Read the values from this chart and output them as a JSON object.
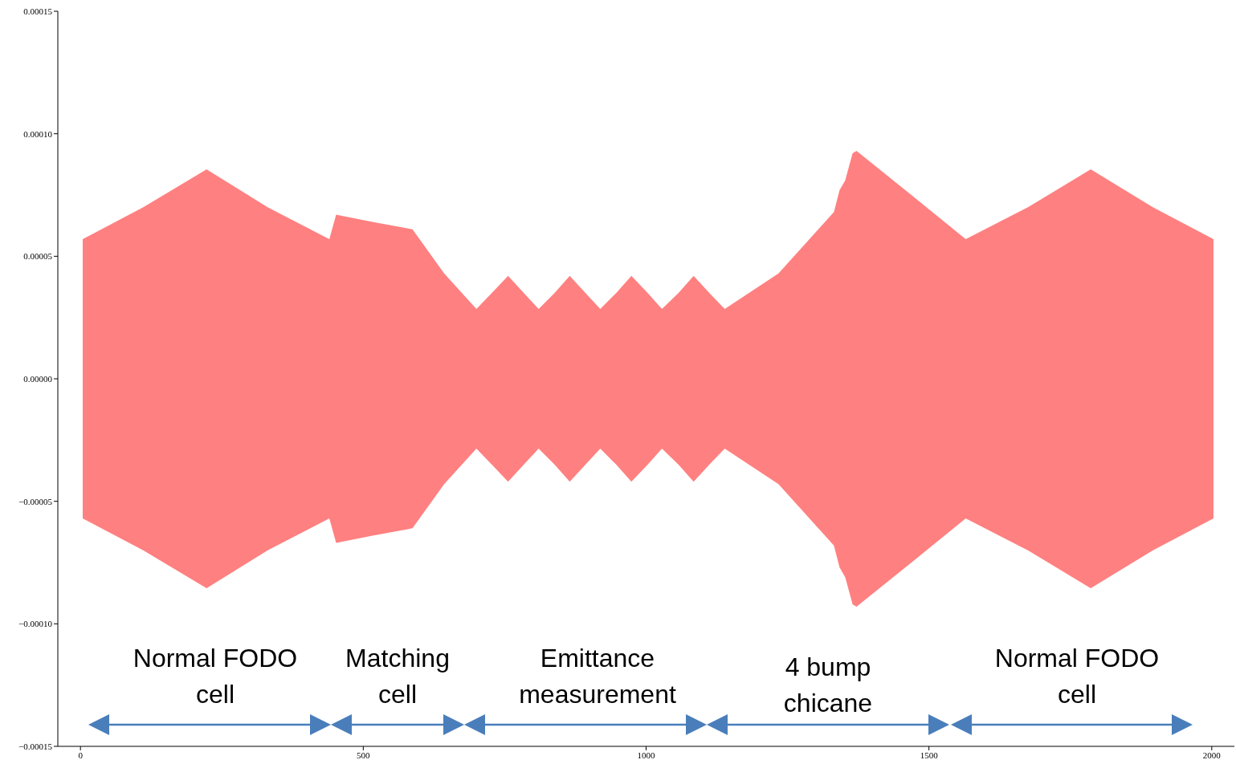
{
  "chart_data": {
    "type": "area",
    "x": [
      4,
      111,
      223,
      331,
      440,
      452,
      516,
      587,
      643,
      700,
      727,
      756,
      784,
      810,
      838,
      865,
      893,
      919,
      947,
      974,
      1003,
      1028,
      1057,
      1084,
      1112,
      1139,
      1234,
      1332,
      1342,
      1352,
      1365,
      1372,
      1469,
      1565,
      1675,
      1786,
      1896,
      2003
    ],
    "series": [
      {
        "color": "#ff8080",
        "values": [
          5.7e-05,
          7e-05,
          8.55e-05,
          7e-05,
          5.7e-05,
          6.7e-05,
          6.4e-05,
          6.1e-05,
          4.3e-05,
          2.85e-05,
          3.5e-05,
          4.2e-05,
          3.5e-05,
          2.85e-05,
          3.5e-05,
          4.2e-05,
          3.5e-05,
          2.85e-05,
          3.5e-05,
          4.2e-05,
          3.5e-05,
          2.85e-05,
          3.5e-05,
          4.2e-05,
          3.5e-05,
          2.85e-05,
          4.3e-05,
          6.8e-05,
          7.7e-05,
          8.1e-05,
          9.2e-05,
          9.3e-05,
          7.5e-05,
          5.7e-05,
          7e-05,
          8.55e-05,
          7e-05,
          5.7e-05
        ]
      },
      {
        "color": "#ff8080",
        "values": [
          -5.7e-05,
          -7e-05,
          -8.55e-05,
          -7e-05,
          -5.7e-05,
          -6.7e-05,
          -6.4e-05,
          -6.1e-05,
          -4.3e-05,
          -2.85e-05,
          -3.5e-05,
          -4.2e-05,
          -3.5e-05,
          -2.85e-05,
          -3.5e-05,
          -4.2e-05,
          -3.5e-05,
          -2.85e-05,
          -3.5e-05,
          -4.2e-05,
          -3.5e-05,
          -2.85e-05,
          -3.5e-05,
          -4.2e-05,
          -3.5e-05,
          -2.85e-05,
          -4.3e-05,
          -6.8e-05,
          -7.7e-05,
          -8.1e-05,
          -9.2e-05,
          -9.3e-05,
          -7.5e-05,
          -5.7e-05,
          -7e-05,
          -8.55e-05,
          -7e-05,
          -5.7e-05
        ]
      }
    ],
    "xlim": [
      -40,
      2040
    ],
    "xticks": [
      0,
      500,
      1000,
      1500,
      2000
    ],
    "ylim": [
      -0.00015,
      0.00015
    ],
    "yticks": [
      {
        "value": -0.00015,
        "label": "−0.00015"
      },
      {
        "value": -0.0001,
        "label": "−0.00010"
      },
      {
        "value": -5e-05,
        "label": "−0.00005"
      },
      {
        "value": 0,
        "label": "0.00000"
      },
      {
        "value": 5e-05,
        "label": "0.00005"
      },
      {
        "value": 0.0001,
        "label": "0.00010"
      },
      {
        "value": 0.00015,
        "label": "0.00015"
      }
    ],
    "grid": false,
    "legend": false,
    "annotations": [
      "Normal FODO cell",
      "Matching cell",
      "Emittance measurement",
      "4 bump chicane",
      "Normal FODO cell"
    ]
  }
}
